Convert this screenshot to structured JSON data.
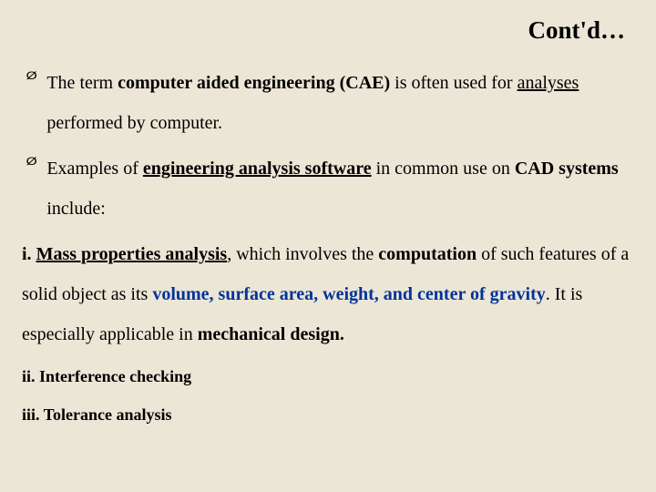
{
  "colors": {
    "background": "#ece6d7",
    "text": "#000000",
    "accent_blue": "#003399"
  },
  "typography": {
    "family": "Times New Roman",
    "title_size_pt": 27,
    "body_size_pt": 20,
    "sub_size_pt": 18,
    "line_height": 2.2
  },
  "title": "Cont'd…",
  "bullets": {
    "b1": {
      "t1": "The term ",
      "t2": "computer aided engineering (CAE)",
      "t3": "  is often used for ",
      "t4": "analyses",
      "t5": " performed by computer."
    },
    "b2": {
      "t1": "Examples of ",
      "t2": "engineering analysis software",
      "t3": " in common use on ",
      "t4": "CAD systems",
      "t5": " include:"
    }
  },
  "items": {
    "i1": {
      "prefix": "i. ",
      "t1": "Mass properties analysis",
      "t2": ", which involves the ",
      "t3": "computation",
      "t4": " of such features of a solid object as its ",
      "t5": "volume, surface area, weight, and center of gravity",
      "t6": ". It is especially applicable in ",
      "t7": "mechanical design.",
      "t8": ""
    },
    "i2": "ii. Interference checking",
    "i3": "iii. Tolerance analysis"
  },
  "chevron": "Ø"
}
